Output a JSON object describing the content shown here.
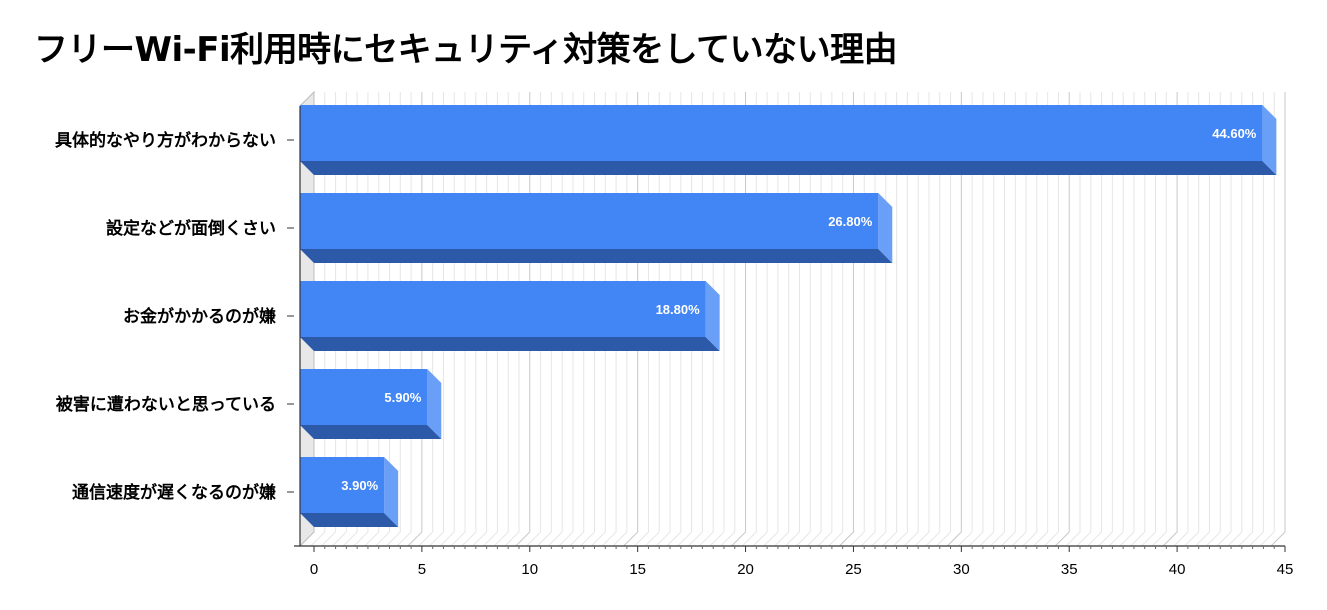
{
  "chart_data": {
    "type": "bar",
    "orientation": "horizontal",
    "three_d": true,
    "title": "フリーWi-Fi利用時にセキュリティ対策をしていない理由",
    "categories": [
      "具体的なやり方がわからない",
      "設定などが面倒くさい",
      "お金がかかるのが嫌",
      "被害に遭わないと思っている",
      "通信速度が遅くなるのが嫌"
    ],
    "values": [
      44.6,
      26.8,
      18.8,
      5.9,
      3.9
    ],
    "data_labels": [
      "44.60%",
      "26.80%",
      "18.80%",
      "5.90%",
      "3.90%"
    ],
    "xlim": [
      0,
      45
    ],
    "x_ticks": [
      "0",
      "5",
      "10",
      "15",
      "20",
      "25",
      "30",
      "35",
      "40",
      "45"
    ],
    "xlabel": "",
    "ylabel": "",
    "grid": true,
    "legend": "none",
    "colors": {
      "bar_front": "#4285F4",
      "bar_bottom": "#2C5AA8",
      "bar_end": "#6A9FF7",
      "wall": "#E8E8E8",
      "grid_major": "#C8C8C8",
      "grid_minor": "#E6E6E6"
    }
  }
}
